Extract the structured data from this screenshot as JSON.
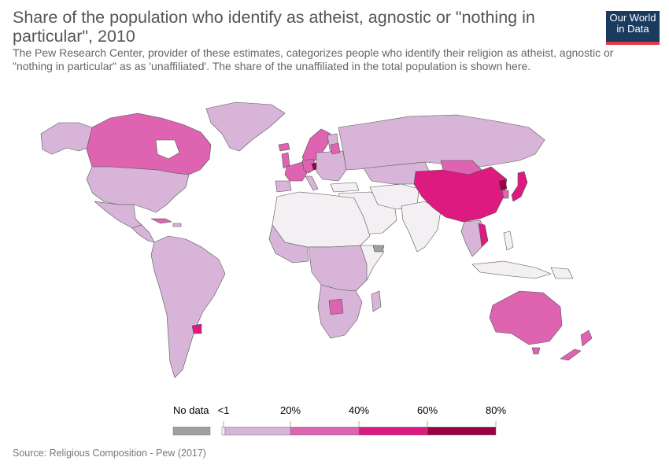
{
  "header": {
    "title": "Share of the population who identify as atheist, agnostic or \"nothing in particular\", 2010",
    "subtitle": "The Pew Research Center, provider of these estimates, categorizes people who identify their religion as atheist, agnostic or \"nothing in particular\" as as 'unaffiliated'. The share of the unaffiliated in the total population is shown here."
  },
  "logo": {
    "line1": "Our World",
    "line2": "in Data",
    "bg": "#1a3a5e",
    "accent": "#e63946"
  },
  "legend": {
    "no_data_label": "No data",
    "no_data_color": "#a0a0a0",
    "bins": [
      {
        "label": "<1",
        "color": "#f3eff3"
      },
      {
        "label": "",
        "color": "#d8b5d8"
      },
      {
        "label": "20%",
        "color": "#de63b1"
      },
      {
        "label": "40%",
        "color": "#dd1a7f"
      },
      {
        "label": "60%",
        "color": "#990040"
      },
      {
        "label": "80%",
        "color": ""
      }
    ]
  },
  "colors": {
    "lt1": "#f3eff3",
    "lilac": "#d8b5d8",
    "pink": "#de63b1",
    "magenta": "#dd1a7f",
    "maroon": "#990040",
    "nodata": "#a0a0a0",
    "border": "#555555"
  },
  "source": {
    "prefix": "Source: ",
    "text": "Religious Composition - Pew (2017)"
  }
}
